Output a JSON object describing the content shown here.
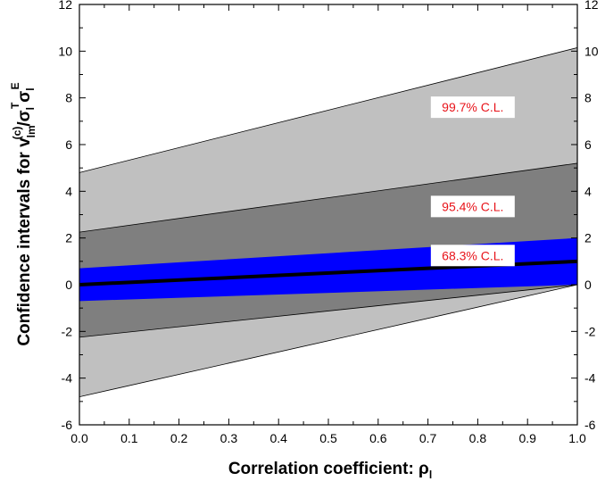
{
  "chart_data": {
    "type": "area",
    "title": "",
    "xlabel": "Correlation coefficient: ρ",
    "xlabel_sub": "l",
    "ylabel": {
      "prefix": "Confidence intervals for v",
      "sub1": "lm",
      "sup1": "(c)",
      "slash": "/σ",
      "sub2": "l",
      "sup2": "T",
      "sigma": "σ",
      "sub3": "l",
      "sup3": "E"
    },
    "xlim": [
      0.0,
      1.0
    ],
    "ylim": [
      -6,
      12
    ],
    "x_ticks": [
      "0.0",
      "0.1",
      "0.2",
      "0.3",
      "0.4",
      "0.5",
      "0.6",
      "0.7",
      "0.8",
      "0.9",
      "1.0"
    ],
    "y_ticks": [
      "-6",
      "-4",
      "-2",
      "0",
      "2",
      "4",
      "6",
      "8",
      "10",
      "12"
    ],
    "grid": false,
    "x": [
      0.0,
      1.0
    ],
    "bands": [
      {
        "name": "99.7% C.L.",
        "color": "#c0c0c0",
        "upper": [
          4.8,
          10.15
        ],
        "lower": [
          -4.8,
          0.0
        ],
        "label_at": [
          0.79,
          7.6
        ]
      },
      {
        "name": "95.4% C.L.",
        "color": "#7f7f7f",
        "upper": [
          2.25,
          5.2
        ],
        "lower": [
          -2.25,
          0.0
        ],
        "label_at": [
          0.79,
          3.35
        ]
      },
      {
        "name": "68.3% C.L.",
        "color": "#0000ff",
        "upper": [
          0.7,
          2.0
        ],
        "lower": [
          -0.7,
          0.0
        ],
        "label_at": [
          0.79,
          1.25
        ]
      }
    ],
    "central_line": {
      "y": [
        0.0,
        1.0
      ],
      "color": "#000000"
    }
  }
}
